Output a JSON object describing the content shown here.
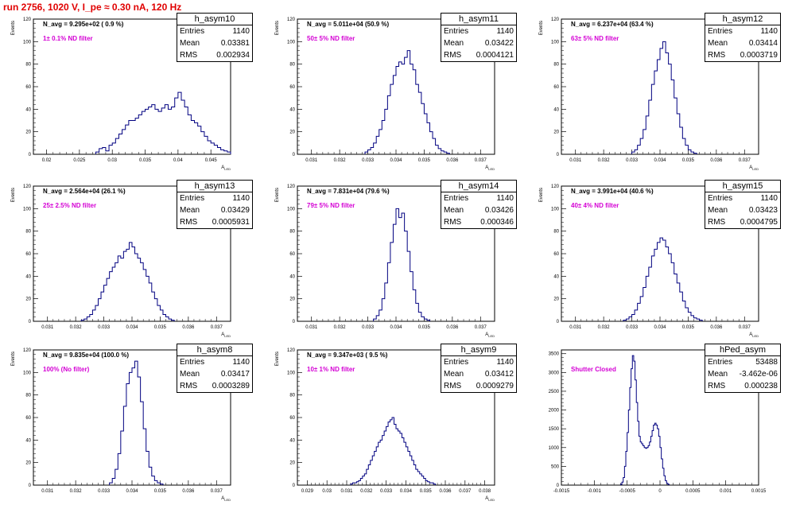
{
  "page": {
    "title": "run 2756,  1020 V, I_pe ≈ 0.30 nA, 120 Hz"
  },
  "chart_data": [
    {
      "type": "histogram",
      "name": "h_asym10",
      "navg": "N_avg = 9.295e+02 ( 0.9 %)",
      "filter": "1± 0.1% ND filter",
      "stats": {
        "Entries": "1140",
        "Mean": "0.03381",
        "RMS": "0.002934"
      },
      "xlim": [
        0.018,
        0.048
      ],
      "ylim": [
        0,
        120
      ],
      "yticks": [
        0,
        20,
        40,
        60,
        80,
        100,
        120
      ],
      "xticks": [
        0.02,
        0.025,
        0.03,
        0.035,
        0.04,
        0.045
      ],
      "xticklabels": [
        "0.02",
        "0.025",
        "0.03",
        "0.035",
        "0.04",
        "0.045"
      ],
      "ylabel": "Events",
      "xlabel": "A_LED",
      "bin_start": 0.0275,
      "bin_width": 0.0005,
      "values": [
        2,
        5,
        6,
        3,
        8,
        10,
        14,
        18,
        22,
        26,
        30,
        30,
        32,
        35,
        38,
        40,
        42,
        44,
        40,
        38,
        41,
        44,
        40,
        42,
        50,
        55,
        48,
        42,
        35,
        30,
        28,
        25,
        20,
        16,
        12,
        10,
        8,
        6,
        4,
        3,
        2
      ]
    },
    {
      "type": "histogram",
      "name": "h_asym11",
      "navg": "N_avg = 5.011e+04 (50.9 %)",
      "filter": "50± 5% ND filter",
      "stats": {
        "Entries": "1140",
        "Mean": "0.03422",
        "RMS": "0.0004121"
      },
      "xlim": [
        0.0305,
        0.0375
      ],
      "ylim": [
        0,
        120
      ],
      "yticks": [
        0,
        20,
        40,
        60,
        80,
        100,
        120
      ],
      "xticks": [
        0.031,
        0.032,
        0.033,
        0.034,
        0.035,
        0.036,
        0.037
      ],
      "xticklabels": [
        "0.031",
        "0.032",
        "0.033",
        "0.034",
        "0.035",
        "0.036",
        "0.037"
      ],
      "ylabel": "Events",
      "xlabel": "A_LED",
      "bin_start": 0.0329,
      "bin_width": 0.0001,
      "values": [
        2,
        4,
        6,
        10,
        16,
        22,
        30,
        40,
        52,
        62,
        70,
        78,
        82,
        80,
        86,
        92,
        80,
        75,
        62,
        55,
        45,
        36,
        28,
        20,
        14,
        8,
        5,
        3,
        2,
        1
      ]
    },
    {
      "type": "histogram",
      "name": "h_asym12",
      "navg": "N_avg = 6.237e+04 (63.4 %)",
      "filter": "63± 5% ND filter",
      "stats": {
        "Entries": "1140",
        "Mean": "0.03414",
        "RMS": "0.0003719"
      },
      "xlim": [
        0.0305,
        0.0375
      ],
      "ylim": [
        0,
        120
      ],
      "yticks": [
        0,
        20,
        40,
        60,
        80,
        100,
        120
      ],
      "xticks": [
        0.031,
        0.032,
        0.033,
        0.034,
        0.035,
        0.036,
        0.037
      ],
      "xticklabels": [
        "0.031",
        "0.032",
        "0.033",
        "0.034",
        "0.035",
        "0.036",
        "0.037"
      ],
      "ylabel": "Events",
      "xlabel": "A_LED",
      "bin_start": 0.033,
      "bin_width": 0.0001,
      "values": [
        2,
        4,
        8,
        14,
        22,
        34,
        48,
        62,
        74,
        84,
        94,
        100,
        90,
        80,
        66,
        50,
        36,
        24,
        14,
        8,
        4,
        2,
        1
      ]
    },
    {
      "type": "histogram",
      "name": "h_asym13",
      "navg": "N_avg = 2.564e+04 (26.1 %)",
      "filter": "25± 2.5% ND filter",
      "stats": {
        "Entries": "1140",
        "Mean": "0.03429",
        "RMS": "0.0005931"
      },
      "xlim": [
        0.0305,
        0.0375
      ],
      "ylim": [
        0,
        120
      ],
      "yticks": [
        0,
        20,
        40,
        60,
        80,
        100,
        120
      ],
      "xticks": [
        0.031,
        0.032,
        0.033,
        0.034,
        0.035,
        0.036,
        0.037
      ],
      "xticklabels": [
        "0.031",
        "0.032",
        "0.033",
        "0.034",
        "0.035",
        "0.036",
        "0.037"
      ],
      "ylabel": "Events",
      "xlabel": "A_LED",
      "bin_start": 0.0322,
      "bin_width": 0.0001,
      "values": [
        1,
        2,
        4,
        6,
        10,
        14,
        20,
        26,
        32,
        38,
        44,
        48,
        52,
        58,
        56,
        62,
        64,
        70,
        66,
        60,
        56,
        52,
        46,
        40,
        34,
        26,
        20,
        14,
        10,
        6,
        4,
        2,
        1
      ]
    },
    {
      "type": "histogram",
      "name": "h_asym14",
      "navg": "N_avg = 7.831e+04 (79.6 %)",
      "filter": "79± 5% ND filter",
      "stats": {
        "Entries": "1140",
        "Mean": "0.03426",
        "RMS": "0.000346"
      },
      "xlim": [
        0.0305,
        0.0375
      ],
      "ylim": [
        0,
        120
      ],
      "yticks": [
        0,
        20,
        40,
        60,
        80,
        100,
        120
      ],
      "xticks": [
        0.031,
        0.032,
        0.033,
        0.034,
        0.035,
        0.036,
        0.037
      ],
      "xticklabels": [
        "0.031",
        "0.032",
        "0.033",
        "0.034",
        "0.035",
        "0.036",
        "0.037"
      ],
      "ylabel": "Events",
      "xlabel": "A_LED",
      "bin_start": 0.0332,
      "bin_width": 0.0001,
      "values": [
        2,
        5,
        10,
        20,
        34,
        52,
        70,
        86,
        100,
        92,
        96,
        80,
        62,
        44,
        28,
        16,
        8,
        4,
        2,
        1
      ]
    },
    {
      "type": "histogram",
      "name": "h_asym15",
      "navg": "N_avg = 3.991e+04 (40.6 %)",
      "filter": "40± 4% ND filter",
      "stats": {
        "Entries": "1140",
        "Mean": "0.03423",
        "RMS": "0.0004795"
      },
      "xlim": [
        0.0305,
        0.0375
      ],
      "ylim": [
        0,
        120
      ],
      "yticks": [
        0,
        20,
        40,
        60,
        80,
        100,
        120
      ],
      "xticks": [
        0.031,
        0.032,
        0.033,
        0.034,
        0.035,
        0.036,
        0.037
      ],
      "xticklabels": [
        "0.031",
        "0.032",
        "0.033",
        "0.034",
        "0.035",
        "0.036",
        "0.037"
      ],
      "ylabel": "Events",
      "xlabel": "A_LED",
      "bin_start": 0.0327,
      "bin_width": 0.0001,
      "values": [
        1,
        2,
        4,
        6,
        10,
        16,
        22,
        30,
        40,
        48,
        58,
        64,
        70,
        74,
        72,
        66,
        60,
        52,
        42,
        34,
        26,
        18,
        12,
        8,
        5,
        3,
        2,
        1
      ]
    },
    {
      "type": "histogram",
      "name": "h_asym8",
      "navg": "N_avg = 9.835e+04 (100.0 %)",
      "filter": "100% (No filter)",
      "stats": {
        "Entries": "1140",
        "Mean": "0.03417",
        "RMS": "0.0003289"
      },
      "xlim": [
        0.0305,
        0.0375
      ],
      "ylim": [
        0,
        120
      ],
      "yticks": [
        0,
        20,
        40,
        60,
        80,
        100,
        120
      ],
      "xticks": [
        0.031,
        0.032,
        0.033,
        0.034,
        0.035,
        0.036,
        0.037
      ],
      "xticklabels": [
        "0.031",
        "0.032",
        "0.033",
        "0.034",
        "0.035",
        "0.036",
        "0.037"
      ],
      "ylabel": "Events",
      "xlabel": "A_LED",
      "bin_start": 0.0332,
      "bin_width": 0.0001,
      "values": [
        2,
        6,
        14,
        28,
        48,
        70,
        90,
        100,
        104,
        110,
        96,
        74,
        50,
        30,
        16,
        8,
        4,
        2,
        1
      ]
    },
    {
      "type": "histogram",
      "name": "h_asym9",
      "navg": "N_avg = 9.347e+03 ( 9.5 %)",
      "filter": "10± 1% ND filter",
      "stats": {
        "Entries": "1140",
        "Mean": "0.03412",
        "RMS": "0.0009279"
      },
      "xlim": [
        0.0285,
        0.0385
      ],
      "ylim": [
        0,
        120
      ],
      "yticks": [
        0,
        20,
        40,
        60,
        80,
        100,
        120
      ],
      "xticks": [
        0.029,
        0.03,
        0.031,
        0.032,
        0.033,
        0.034,
        0.035,
        0.036,
        0.037,
        0.038
      ],
      "xticklabels": [
        "0.029",
        "0.03",
        "0.031",
        "0.032",
        "0.033",
        "0.034",
        "0.035",
        "0.036",
        "0.037",
        "0.038"
      ],
      "ylabel": "Events",
      "xlabel": "A_LED",
      "bin_start": 0.0312,
      "bin_width": 0.0001,
      "values": [
        1,
        2,
        2,
        3,
        4,
        6,
        8,
        10,
        14,
        18,
        22,
        26,
        30,
        34,
        38,
        40,
        44,
        48,
        52,
        56,
        58,
        60,
        54,
        50,
        48,
        46,
        42,
        38,
        34,
        30,
        26,
        22,
        18,
        14,
        12,
        10,
        8,
        6,
        4,
        3,
        2,
        2,
        1
      ]
    },
    {
      "type": "histogram",
      "name": "hPed_asym",
      "navg": "",
      "filter": "Shutter Closed",
      "stats": {
        "Entries": "53488",
        "Mean": "-3.462e-06",
        "RMS": "0.000238"
      },
      "xlim": [
        -0.0015,
        0.0015
      ],
      "ylim": [
        0,
        3600
      ],
      "yticks": [
        0,
        500,
        1000,
        1500,
        2000,
        2500,
        3000,
        3500
      ],
      "xticks": [
        -0.0015,
        -0.001,
        -0.0005,
        0,
        0.0005,
        0.001,
        0.0015
      ],
      "xticklabels": [
        "-0.0015",
        "-0.001",
        "-0.0005",
        "0",
        "0.0005",
        "0.001",
        "0.0015"
      ],
      "ylabel": "",
      "xlabel": "",
      "bin_start": -0.0006,
      "bin_width": 2e-05,
      "values": [
        20,
        80,
        200,
        500,
        900,
        1400,
        2000,
        2600,
        3100,
        3450,
        3300,
        2800,
        2200,
        1700,
        1300,
        1150,
        1100,
        1050,
        1000,
        980,
        1000,
        1050,
        1150,
        1300,
        1450,
        1600,
        1650,
        1600,
        1500,
        1300,
        1000,
        700,
        450,
        250,
        120,
        50,
        20
      ]
    }
  ]
}
